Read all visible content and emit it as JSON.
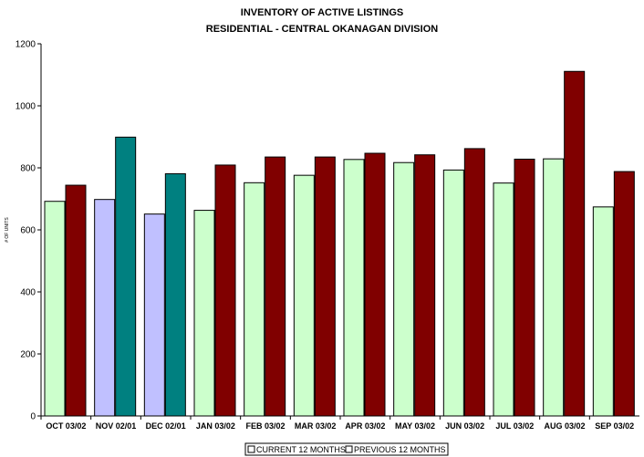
{
  "chart_data": {
    "type": "bar",
    "title": "INVENTORY OF ACTIVE LISTINGS",
    "subtitle": "RESIDENTIAL - CENTRAL OKANAGAN DIVISION",
    "xlabel": "",
    "ylabel": "# OF UNITS",
    "ylim": [
      0,
      1200
    ],
    "yticks": [
      0,
      200,
      400,
      600,
      800,
      1000,
      1200
    ],
    "grid": false,
    "legend_position": "bottom",
    "categories": [
      "OCT 03/02",
      "NOV 02/01",
      "DEC 02/01",
      "JAN 03/02",
      "FEB 03/02",
      "MAR 03/02",
      "APR 03/02",
      "MAY 03/02",
      "JUN 03/02",
      "JUL 03/02",
      "AUG 03/02",
      "SEP 03/02"
    ],
    "series": [
      {
        "name": "CURRENT 12 MONTHS",
        "values": [
          692,
          698,
          651,
          663,
          752,
          776,
          827,
          817,
          793,
          751,
          829,
          674
        ],
        "colors": [
          "#ccffcc",
          "#c0c0ff",
          "#c0c0ff",
          "#ccffcc",
          "#ccffcc",
          "#ccffcc",
          "#ccffcc",
          "#ccffcc",
          "#ccffcc",
          "#ccffcc",
          "#ccffcc",
          "#ccffcc"
        ]
      },
      {
        "name": "PREVIOUS 12 MONTHS",
        "values": [
          744,
          899,
          781,
          809,
          835,
          835,
          847,
          842,
          862,
          828,
          1111,
          788
        ],
        "colors": [
          "#800000",
          "#008080",
          "#008080",
          "#800000",
          "#800000",
          "#800000",
          "#800000",
          "#800000",
          "#800000",
          "#800000",
          "#800000",
          "#800000"
        ]
      }
    ]
  }
}
